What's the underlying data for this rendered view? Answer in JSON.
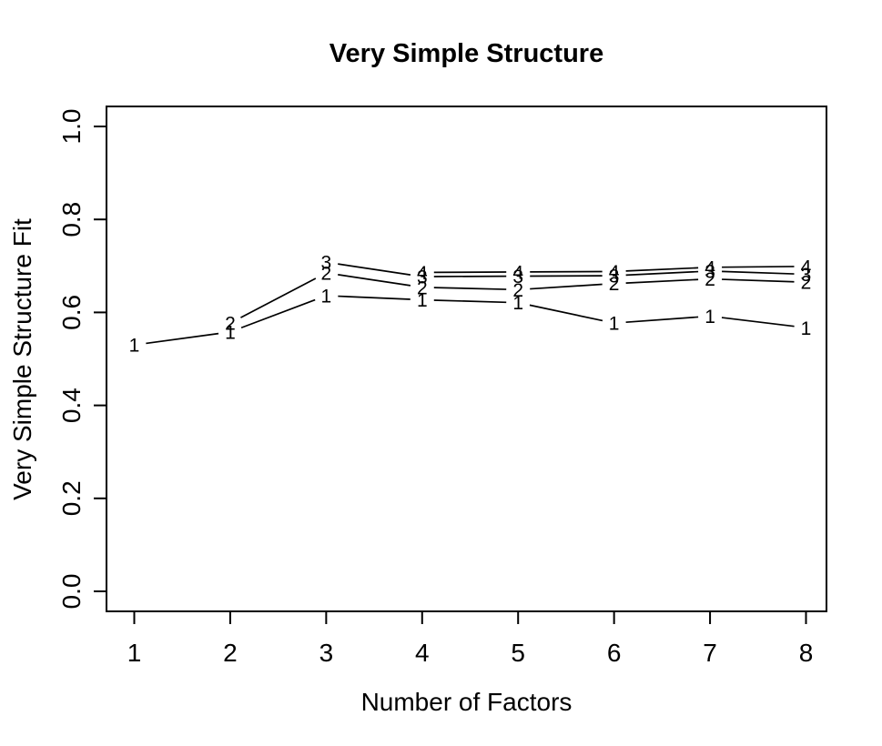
{
  "title": "Very Simple Structure",
  "chart_data": {
    "type": "line",
    "title": "Very Simple Structure",
    "xlabel": "Number of Factors",
    "ylabel": "Very Simple Structure Fit",
    "xlim": [
      1,
      8
    ],
    "ylim": [
      0.0,
      1.0
    ],
    "x_ticks": [
      1,
      2,
      3,
      4,
      5,
      6,
      7,
      8
    ],
    "y_tick_values": [
      0.0,
      0.2,
      0.4,
      0.6,
      0.8,
      1.0
    ],
    "y_tick_labels": [
      "0.0",
      "0.2",
      "0.4",
      "0.6",
      "0.8",
      "1.0"
    ],
    "grid": false,
    "legend": "none",
    "marker_style": "text-digit-of-series-name",
    "series": [
      {
        "name": "1",
        "marker": "1",
        "x": [
          1,
          2,
          3,
          4,
          5,
          6,
          7,
          8
        ],
        "y": [
          0.53,
          0.558,
          0.636,
          0.627,
          0.621,
          0.577,
          0.592,
          0.567
        ]
      },
      {
        "name": "2",
        "marker": "2",
        "x": [
          2,
          3,
          4,
          5,
          6,
          7,
          8
        ],
        "y": [
          0.577,
          0.685,
          0.654,
          0.649,
          0.662,
          0.672,
          0.665
        ]
      },
      {
        "name": "3",
        "marker": "3",
        "x": [
          3,
          4,
          5,
          6,
          7,
          8
        ],
        "y": [
          0.708,
          0.677,
          0.678,
          0.679,
          0.689,
          0.682
        ]
      },
      {
        "name": "4",
        "marker": "4",
        "x": [
          4,
          5,
          6,
          7,
          8
        ],
        "y": [
          0.686,
          0.687,
          0.688,
          0.697,
          0.699
        ]
      }
    ],
    "colors": {
      "foreground": "#000000",
      "background": "#ffffff"
    }
  }
}
